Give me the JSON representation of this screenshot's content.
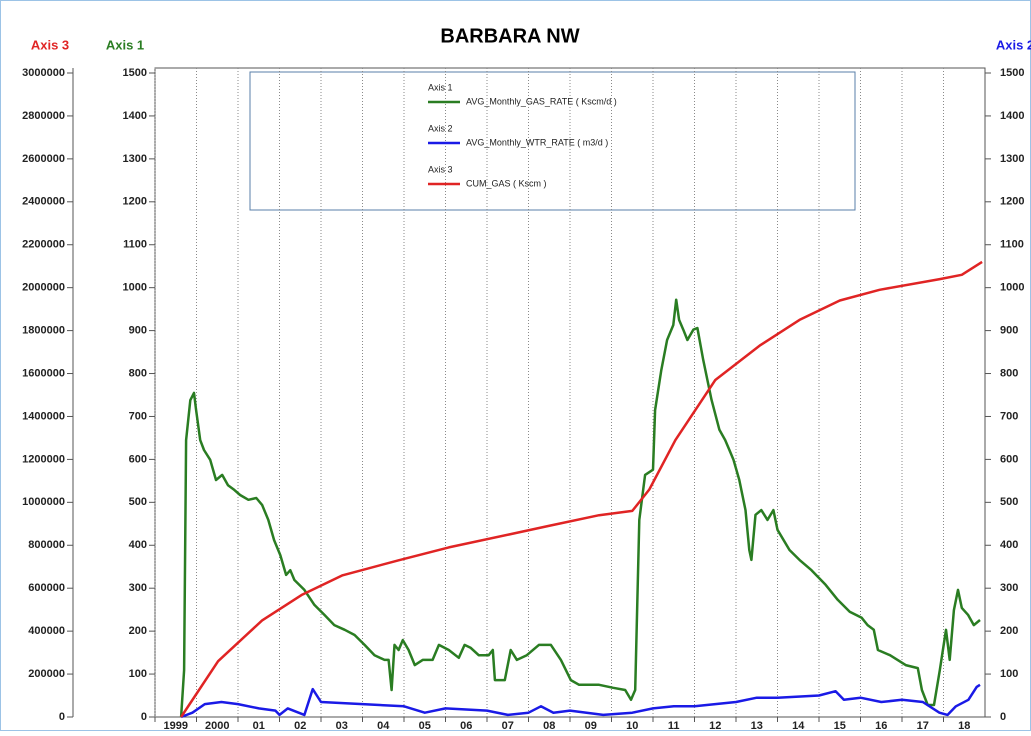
{
  "chart_data": {
    "type": "line",
    "title": "BARBARA NW",
    "xlim": [
      1999,
      2019
    ],
    "xticks": [
      1999,
      2000,
      {
        "value": 2001,
        "label": "01"
      },
      {
        "value": 2002,
        "label": "02"
      },
      {
        "value": 2003,
        "label": "03"
      },
      {
        "value": 2004,
        "label": "04"
      },
      {
        "value": 2005,
        "label": "05"
      },
      {
        "value": 2006,
        "label": "06"
      },
      {
        "value": 2007,
        "label": "07"
      },
      {
        "value": 2008,
        "label": "08"
      },
      {
        "value": 2009,
        "label": "09"
      },
      {
        "value": 2010,
        "label": "10"
      },
      {
        "value": 2011,
        "label": "11"
      },
      {
        "value": 2012,
        "label": "12"
      },
      {
        "value": 2013,
        "label": "13"
      },
      {
        "value": 2014,
        "label": "14"
      },
      {
        "value": 2015,
        "label": "15"
      },
      {
        "value": 2016,
        "label": "16"
      },
      {
        "value": 2017,
        "label": "17"
      },
      {
        "value": 2018,
        "label": "18"
      }
    ],
    "ylim": [
      0,
      1500
    ],
    "yticks": [
      0,
      100,
      200,
      300,
      400,
      500,
      600,
      700,
      800,
      900,
      1000,
      1100,
      1200,
      1300,
      1400,
      1500
    ],
    "y2lim": [
      0,
      1500
    ],
    "y2ticks": [
      0,
      100,
      200,
      300,
      400,
      500,
      600,
      700,
      800,
      900,
      1000,
      1100,
      1200,
      1300,
      1400,
      1500
    ],
    "y3lim": [
      0,
      3000000
    ],
    "y3ticks": [
      0,
      200000,
      400000,
      600000,
      800000,
      1000000,
      1200000,
      1400000,
      1600000,
      1800000,
      2000000,
      2200000,
      2400000,
      2600000,
      2800000,
      3000000
    ],
    "grid": true,
    "series": [
      {
        "name": "AVG_Monthly_GAS_RATE ( Kscm/d )",
        "axis_label": "Axis 1",
        "axis": "y",
        "color": "#2a7d22",
        "x": [
          1999.63,
          1999.7,
          1999.75,
          1999.85,
          1999.94,
          1999.99,
          2000.09,
          2000.18,
          2000.33,
          2000.47,
          2000.62,
          2000.76,
          2000.91,
          2001.05,
          2001.25,
          2001.44,
          2001.58,
          2001.73,
          2001.87,
          2002.02,
          2002.16,
          2002.26,
          2002.36,
          2002.6,
          2002.84,
          2003.08,
          2003.32,
          2003.57,
          2003.81,
          2004.05,
          2004.29,
          2004.53,
          2004.63,
          2004.7,
          2004.77,
          2004.87,
          2004.97,
          2005.11,
          2005.26,
          2005.45,
          2005.69,
          2005.84,
          2006.08,
          2006.32,
          2006.46,
          2006.61,
          2006.8,
          2007.04,
          2007.14,
          2007.19,
          2007.43,
          2007.57,
          2007.72,
          2007.96,
          2008.25,
          2008.54,
          2008.78,
          2009.02,
          2009.22,
          2009.7,
          2010.04,
          2010.33,
          2010.47,
          2010.57,
          2010.67,
          2010.81,
          2011.0,
          2011.05,
          2011.2,
          2011.34,
          2011.49,
          2011.56,
          2011.63,
          2011.73,
          2011.83,
          2011.97,
          2012.07,
          2012.21,
          2012.41,
          2012.6,
          2012.74,
          2012.84,
          2012.94,
          2013.08,
          2013.23,
          2013.32,
          2013.37,
          2013.47,
          2013.61,
          2013.76,
          2013.9,
          2014.0,
          2014.29,
          2014.53,
          2014.82,
          2015.16,
          2015.45,
          2015.74,
          2016.03,
          2016.17,
          2016.32,
          2016.42,
          2016.71,
          2017.09,
          2017.38,
          2017.48,
          2017.62,
          2017.77,
          2017.91,
          2018.06,
          2018.15,
          2018.25,
          2018.35,
          2018.44,
          2018.59,
          2018.73,
          2018.88
        ],
        "values": [
          0,
          109,
          645,
          738,
          755,
          715,
          645,
          622,
          599,
          552,
          564,
          540,
          529,
          517,
          506,
          510,
          494,
          459,
          412,
          377,
          331,
          342,
          319,
          296,
          261,
          238,
          214,
          203,
          191,
          168,
          144,
          133,
          133,
          63,
          168,
          156,
          179,
          156,
          121,
          133,
          133,
          168,
          156,
          138,
          168,
          161,
          144,
          144,
          156,
          86,
          86,
          156,
          133,
          144,
          168,
          168,
          133,
          86,
          75,
          75,
          68,
          63,
          40,
          63,
          459,
          564,
          576,
          715,
          808,
          878,
          913,
          972,
          925,
          902,
          878,
          902,
          906,
          832,
          739,
          669,
          645,
          622,
          599,
          552,
          482,
          389,
          366,
          471,
          482,
          459,
          482,
          436,
          389,
          366,
          342,
          308,
          273,
          245,
          231,
          214,
          203,
          156,
          144,
          121,
          114,
          63,
          28,
          28,
          109,
          203,
          133,
          249,
          296,
          254,
          238,
          214,
          226
        ]
      },
      {
        "name": "AVG_Monthly_WTR_RATE ( m3/d )",
        "axis_label": "Axis 2",
        "axis": "y2",
        "color": "#1a1ae6",
        "x": [
          1999.63,
          1999.9,
          2000.2,
          2000.6,
          2001.0,
          2001.5,
          2001.9,
          2002.0,
          2002.2,
          2002.6,
          2002.8,
          2003.0,
          2004.0,
          2005.0,
          2005.5,
          2006.0,
          2007.0,
          2007.5,
          2008.0,
          2008.3,
          2008.6,
          2009.0,
          2009.8,
          2010.5,
          2011.0,
          2011.5,
          2012.0,
          2012.5,
          2013.0,
          2013.5,
          2014.0,
          2015.0,
          2015.4,
          2015.6,
          2016.0,
          2016.5,
          2017.0,
          2017.5,
          2017.9,
          2018.1,
          2018.3,
          2018.6,
          2018.8,
          2018.88
        ],
        "values": [
          0,
          10,
          30,
          35,
          30,
          20,
          15,
          5,
          20,
          5,
          65,
          35,
          30,
          25,
          10,
          20,
          15,
          5,
          10,
          25,
          10,
          15,
          5,
          10,
          20,
          25,
          25,
          30,
          35,
          45,
          45,
          50,
          60,
          40,
          45,
          35,
          40,
          35,
          10,
          5,
          25,
          40,
          70,
          75
        ]
      },
      {
        "name": "CUM_GAS ( Kscm )",
        "axis_label": "Axis 3",
        "axis": "y3",
        "color": "#e02424",
        "x": [
          1999.63,
          2000.52,
          2001.58,
          2002.55,
          2003.52,
          2004.87,
          2006.08,
          2007.53,
          2008.49,
          2009.7,
          2010.5,
          2010.91,
          2011.54,
          2012.5,
          2013.57,
          2014.53,
          2015.5,
          2016.46,
          2017.91,
          2018.44,
          2018.93
        ],
        "values": [
          0,
          260000,
          450000,
          570000,
          660000,
          730000,
          790000,
          850000,
          890000,
          940000,
          960000,
          1060000,
          1290000,
          1570000,
          1730000,
          1850000,
          1940000,
          1990000,
          2040000,
          2060000,
          2120000
        ]
      }
    ]
  }
}
